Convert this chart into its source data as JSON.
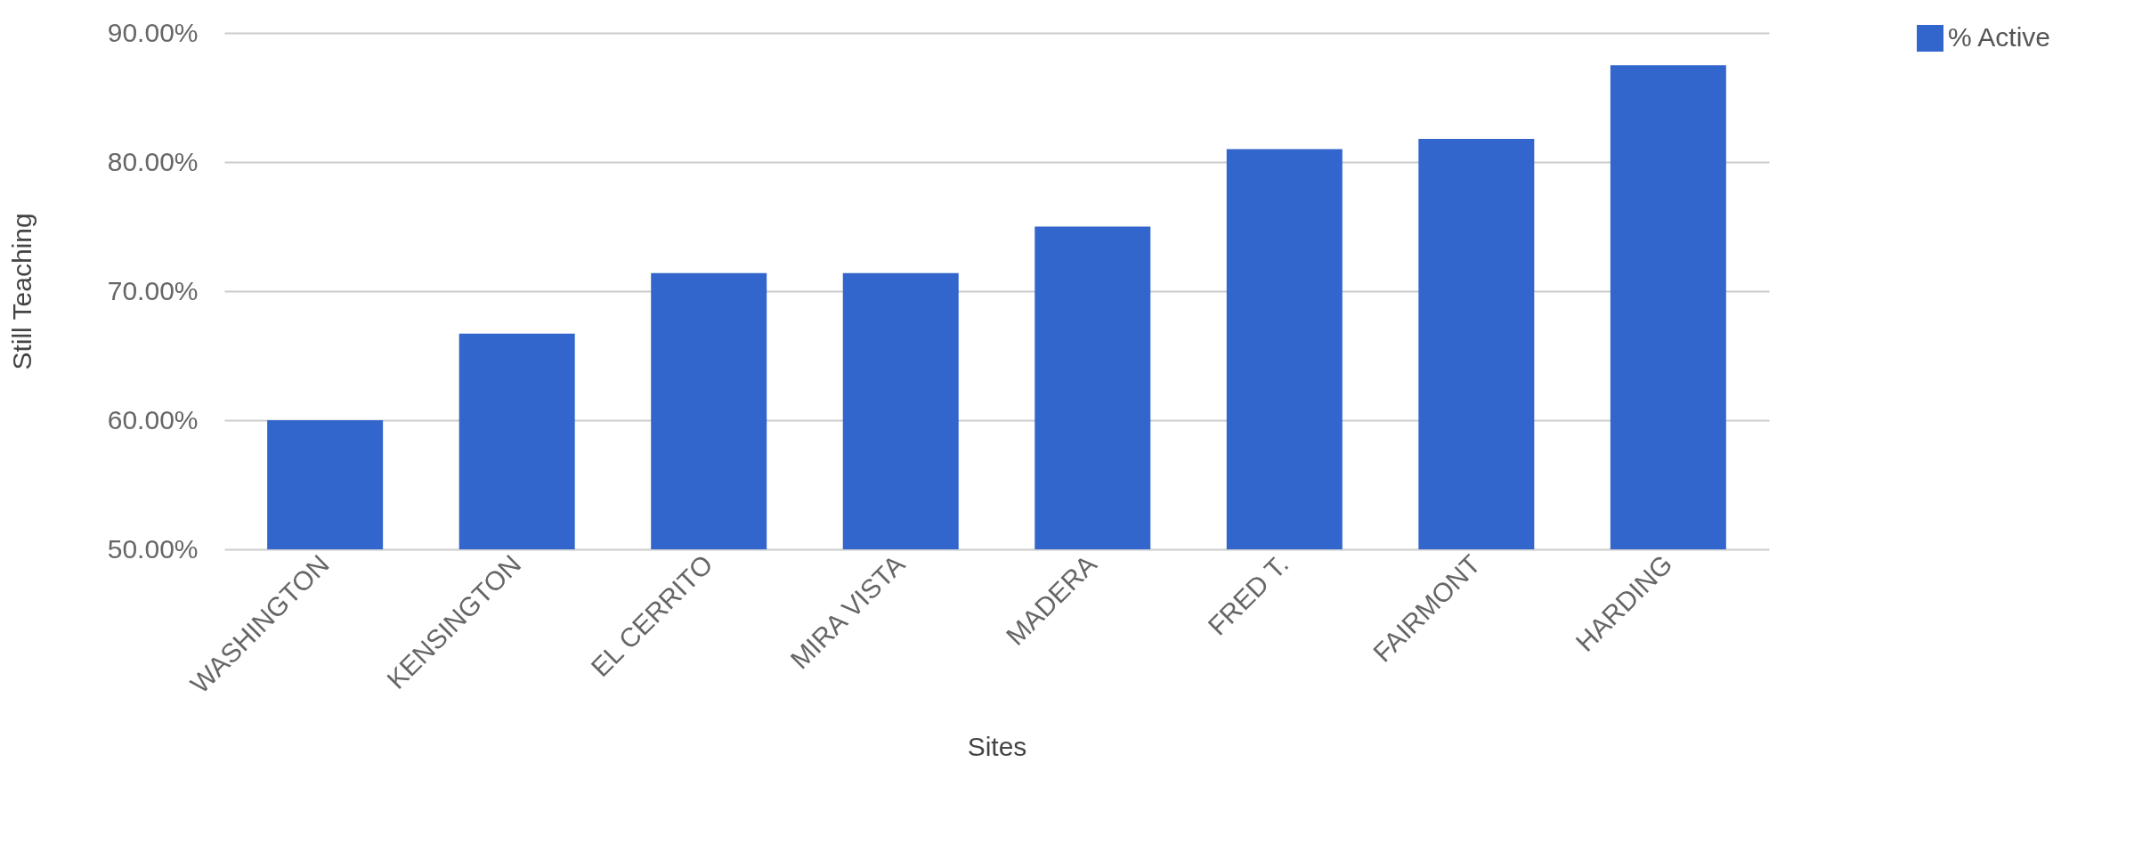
{
  "chart_data": {
    "type": "bar",
    "xlabel": "Sites",
    "ylabel": "Still Teaching",
    "categories": [
      "WASHINGTON",
      "KENSINGTON",
      "EL CERRITO",
      "MIRA VISTA",
      "MADERA",
      "FRED T.",
      "FAIRMONT",
      "HARDING"
    ],
    "series": [
      {
        "name": "% Active",
        "color": "#3366cc",
        "values": [
          60.0,
          66.7,
          71.4,
          71.4,
          75.0,
          81.0,
          81.8,
          87.5
        ]
      }
    ],
    "ylim": [
      50,
      90
    ],
    "yticks": [
      {
        "value": 50,
        "label": "50.00%"
      },
      {
        "value": 60,
        "label": "60.00%"
      },
      {
        "value": 70,
        "label": "70.00%"
      },
      {
        "value": 80,
        "label": "80.00%"
      },
      {
        "value": 90,
        "label": "90.00%"
      }
    ],
    "grid": "y",
    "legend": "top right"
  }
}
